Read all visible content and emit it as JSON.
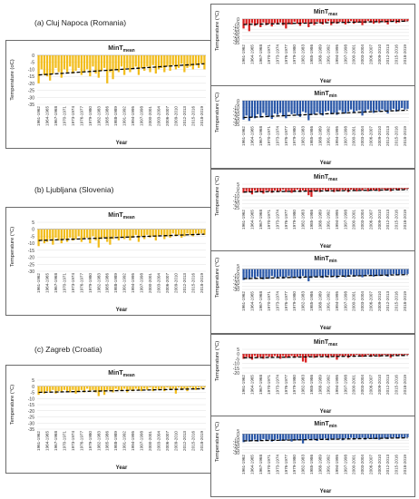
{
  "cities": [
    {
      "label": "(a)  Cluj Napoca (Romania)"
    },
    {
      "label": "(b)  Ljubljana (Slovenia)"
    },
    {
      "label": "(c)  Zagreb (Croatia)"
    }
  ],
  "colors": {
    "mean": "#f2bd1d",
    "max": "#d92020",
    "min": "#2b58a8",
    "trend": "#000000"
  },
  "chart_data": [
    {
      "type": "bar",
      "title": "MinT",
      "title_sub": "mean",
      "xlabel": "Year",
      "ylabel": "Temperature (oC)",
      "ylim": [
        -35,
        0
      ],
      "yticks": [
        0,
        -5,
        -10,
        -15,
        -20,
        -25,
        -30,
        -35
      ],
      "x_ticks": [
        "1961-1962",
        "1964-1965",
        "1967-1968",
        "1970-1971",
        "1973-1974",
        "1976-1977",
        "1979-1980",
        "1982-1983",
        "1985-1986",
        "1988-1989",
        "1991-1992",
        "1994-1995",
        "1997-1998",
        "2000-2001",
        "2003-2004",
        "2006-2007",
        "2009-2010",
        "2012-2013",
        "2015-2016",
        "2018-2019"
      ],
      "values": [
        -20,
        -10,
        -14,
        -15,
        -18,
        -13,
        -9,
        -12,
        -16,
        -10,
        -12,
        -8,
        -13,
        -11,
        -9,
        -14,
        -12,
        -10,
        -15,
        -8,
        -13,
        -16,
        -11,
        -9,
        -20,
        -12,
        -17,
        -10,
        -12,
        -8,
        -14,
        -9,
        -12,
        -10,
        -8,
        -14,
        -9,
        -11,
        -8,
        -12,
        -7,
        -13,
        -10,
        -9,
        -12,
        -8,
        -11,
        -7,
        -10,
        -9,
        -6,
        -12,
        -9,
        -8,
        -10,
        -7,
        -9,
        -6,
        -10
      ],
      "trend": [
        -14,
        -6
      ]
    },
    {
      "type": "bar",
      "title": "MinT",
      "title_sub": "max",
      "xlabel": "Year",
      "ylabel": "Temperature (°C)",
      "ylim": [
        -35,
        0
      ],
      "yticks": [
        0,
        -5,
        -10,
        -15,
        -20,
        -25,
        -30,
        -35
      ],
      "x_ticks": [
        "1961-1962",
        "1964-1965",
        "1967-1968",
        "1970-1971",
        "1973-1974",
        "1976-1977",
        "1979-1980",
        "1982-1983",
        "1985-1986",
        "1988-1989",
        "1991-1992",
        "1994-1995",
        "1997-1998",
        "2000-2001",
        "2003-2004",
        "2006-2007",
        "2009-2010",
        "2012-2013",
        "2015-2016",
        "2018-2019"
      ],
      "values": [
        -14,
        -8,
        -18,
        -6,
        -10,
        -7,
        -12,
        -5,
        -9,
        -7,
        -11,
        -6,
        -8,
        -5,
        -9,
        -14,
        -6,
        -8,
        -4,
        -7,
        -10,
        -6,
        -5,
        -12,
        -7,
        -9,
        -4,
        -6,
        -8,
        -5,
        -3,
        -9,
        -6,
        -7,
        -4,
        -5,
        -8,
        -6,
        -3,
        -7,
        -5,
        -4,
        -9,
        -6,
        -3,
        -5,
        -7,
        -4,
        -6,
        -3,
        -5,
        -8,
        -4,
        -3,
        -6,
        -5,
        -2,
        -4,
        -3
      ],
      "trend": [
        -8,
        -3
      ]
    },
    {
      "type": "bar",
      "title": "MinT",
      "title_sub": "min",
      "xlabel": "Year",
      "ylabel": "Temperature (°C)",
      "ylim": [
        -35,
        0
      ],
      "yticks": [
        0,
        -5,
        -10,
        -15,
        -20,
        -25,
        -30,
        -35
      ],
      "x_ticks": [
        "1961-1962",
        "1964-1965",
        "1967-1968",
        "1970-1971",
        "1973-1974",
        "1976-1977",
        "1979-1980",
        "1982-1983",
        "1985-1986",
        "1988-1989",
        "1991-1992",
        "1994-1995",
        "1997-1998",
        "2000-2001",
        "2003-2004",
        "2006-2007",
        "2009-2010",
        "2012-2013",
        "2015-2016",
        "2018-2019"
      ],
      "values": [
        -28,
        -22,
        -30,
        -24,
        -26,
        -20,
        -25,
        -18,
        -22,
        -24,
        -27,
        -19,
        -21,
        -18,
        -23,
        -26,
        -17,
        -20,
        -19,
        -22,
        -24,
        -16,
        -18,
        -29,
        -21,
        -20,
        -17,
        -19,
        -22,
        -16,
        -15,
        -20,
        -18,
        -21,
        -14,
        -17,
        -19,
        -16,
        -13,
        -18,
        -15,
        -14,
        -22,
        -17,
        -13,
        -15,
        -18,
        -14,
        -16,
        -13,
        -15,
        -19,
        -14,
        -12,
        -16,
        -14,
        -11,
        -13,
        -12
      ],
      "trend": [
        -25,
        -14
      ]
    },
    {
      "type": "bar",
      "title": "MinT",
      "title_sub": "mean",
      "xlabel": "Year",
      "ylabel": "Temperature (°C)",
      "ylim": [
        -30,
        5
      ],
      "yticks": [
        5,
        0,
        -5,
        -10,
        -15,
        -20,
        -25,
        -30
      ],
      "x_ticks": [
        "1961-1962",
        "1964-1965",
        "1967-1968",
        "1970-1971",
        "1973-1974",
        "1976-1977",
        "1979-1980",
        "1982-1983",
        "1985-1986",
        "1988-1989",
        "1991-1992",
        "1994-1995",
        "1997-1998",
        "2000-2001",
        "2003-2004",
        "2006-2007",
        "2009-2010",
        "2012-2013",
        "2015-2016",
        "2018-2019"
      ],
      "values": [
        -12,
        -8,
        -10,
        -9,
        -7,
        -11,
        -6,
        -8,
        -10,
        -7,
        -9,
        -6,
        -8,
        -7,
        -5,
        -9,
        -7,
        -6,
        -10,
        -5,
        -8,
        -13,
        -7,
        -6,
        -9,
        -11,
        -7,
        -5,
        -8,
        -6,
        -7,
        -5,
        -8,
        -6,
        -4,
        -9,
        -5,
        -7,
        -4,
        -6,
        -5,
        -8,
        -5,
        -4,
        -7,
        -5,
        -6,
        -3,
        -5,
        -4,
        -6,
        -5,
        -3,
        -4,
        -5,
        -3,
        -4,
        -3,
        -4
      ],
      "trend": [
        -8,
        -3.5
      ]
    },
    {
      "type": "bar",
      "title": "MinT",
      "title_sub": "max",
      "xlabel": "Year",
      "ylabel": "Temperature (°C)",
      "ylim": [
        -25,
        5
      ],
      "yticks": [
        5,
        0,
        -5,
        -10,
        -15,
        -20,
        -25
      ],
      "x_ticks": [
        "1961-1962",
        "1964-1965",
        "1967-1968",
        "1970-1971",
        "1973-1974",
        "1976-1977",
        "1979-1980",
        "1982-1983",
        "1985-1986",
        "1988-1989",
        "1991-1992",
        "1994-1995",
        "1997-1998",
        "2000-2001",
        "2003-2004",
        "2006-2007",
        "2009-2010",
        "2012-2013",
        "2015-2016",
        "2018-2019"
      ],
      "values": [
        -6,
        -4,
        -5,
        -8,
        -3,
        -5,
        -4,
        -7,
        -3,
        -4,
        -6,
        -3,
        -5,
        -4,
        -2,
        -5,
        -3,
        -6,
        -4,
        -2,
        -5,
        -3,
        -4,
        -9,
        -11,
        -4,
        -3,
        -5,
        -2,
        -3,
        -4,
        -2,
        -5,
        -3,
        -4,
        -2,
        -3,
        -5,
        -2,
        -3,
        -4,
        -2,
        -3,
        -1,
        -4,
        -2,
        -3,
        -2,
        -4,
        -1,
        -3,
        -2,
        -4,
        -1,
        -2,
        -3,
        -1,
        -2,
        -1
      ],
      "trend": [
        -5,
        -2
      ]
    },
    {
      "type": "bar",
      "title": "MinT",
      "title_sub": "min",
      "xlabel": "Year",
      "ylabel": "Temperature (°C)",
      "ylim": [
        -30,
        5
      ],
      "yticks": [
        5,
        0,
        -5,
        -10,
        -15,
        -20,
        -25,
        -30
      ],
      "x_ticks": [
        "1961-1962",
        "1964-1965",
        "1967-1968",
        "1970-1971",
        "1973-1974",
        "1976-1977",
        "1979-1980",
        "1982-1983",
        "1985-1986",
        "1988-1989",
        "1991-1992",
        "1994-1995",
        "1997-1998",
        "2000-2001",
        "2003-2004",
        "2006-2007",
        "2009-2010",
        "2012-2013",
        "2015-2016",
        "2018-2019"
      ],
      "values": [
        -16,
        -13,
        -15,
        -12,
        -14,
        -11,
        -13,
        -15,
        -12,
        -14,
        -10,
        -12,
        -13,
        -11,
        -14,
        -12,
        -10,
        -13,
        -11,
        -12,
        -14,
        -10,
        -12,
        -18,
        -13,
        -11,
        -12,
        -10,
        -13,
        -11,
        -9,
        -12,
        -10,
        -13,
        -9,
        -11,
        -12,
        -10,
        -8,
        -11,
        -10,
        -9,
        -12,
        -10,
        -8,
        -9,
        -11,
        -9,
        -10,
        -8,
        -9,
        -11,
        -8,
        -7,
        -9,
        -8,
        -7,
        -8,
        -7
      ],
      "trend": [
        -14,
        -8
      ]
    },
    {
      "type": "bar",
      "title": "MinT",
      "title_sub": "mean",
      "xlabel": "Year",
      "ylabel": "Temperature (°C)",
      "ylim": [
        -35,
        5
      ],
      "yticks": [
        5,
        0,
        -5,
        -10,
        -15,
        -20,
        -25,
        -30,
        -35
      ],
      "x_ticks": [
        "1961-1962",
        "1964-1965",
        "1967-1968",
        "1970-1971",
        "1973-1974",
        "1976-1977",
        "1979-1980",
        "1982-1983",
        "1985-1986",
        "1988-1989",
        "1991-1992",
        "1994-1995",
        "1997-1998",
        "2000-2001",
        "2003-2004",
        "2006-2007",
        "2009-2010",
        "2012-2013",
        "2015-2016",
        "2018-2019"
      ],
      "values": [
        -7,
        -5,
        -6,
        -4,
        -5,
        -3,
        -6,
        -4,
        -5,
        -3,
        -4,
        -5,
        -3,
        -6,
        -4,
        -3,
        -5,
        -2,
        -4,
        -3,
        -5,
        -8,
        -4,
        -7,
        -3,
        -4,
        -5,
        -2,
        -3,
        -4,
        -2,
        -5,
        -3,
        -4,
        -2,
        -3,
        -4,
        -2,
        -3,
        -1,
        -4,
        -2,
        -3,
        -2,
        -4,
        -1,
        -3,
        -2,
        -6,
        -1,
        -3,
        -2,
        -4,
        -1,
        -2,
        -3,
        -1,
        -2,
        -1
      ],
      "trend": [
        -5,
        -2
      ]
    },
    {
      "type": "bar",
      "title": "MinT",
      "title_sub": "max",
      "xlabel": "Year",
      "ylabel": "Temperature (°C)",
      "ylim": [
        -20,
        5
      ],
      "yticks": [
        5,
        0,
        -5,
        -10,
        -15,
        -20
      ],
      "x_ticks": [
        "1961-1962",
        "1964-1965",
        "1967-1968",
        "1970-1971",
        "1973-1974",
        "1976-1977",
        "1979-1980",
        "1982-1983",
        "1985-1986",
        "1988-1989",
        "1991-1992",
        "1994-1995",
        "1997-1998",
        "2000-2001",
        "2003-2004",
        "2006-2007",
        "2009-2010",
        "2012-2013",
        "2015-2016",
        "2018-2019"
      ],
      "values": [
        -5,
        -3,
        -4,
        -6,
        -2,
        -4,
        -3,
        -5,
        -2,
        -3,
        -4,
        -2,
        -3,
        -5,
        -2,
        -4,
        -3,
        -2,
        -4,
        -3,
        -2,
        -8,
        -9,
        -3,
        -2,
        -4,
        -3,
        -2,
        -3,
        -2,
        -4,
        -2,
        -3,
        -6,
        -2,
        -3,
        -2,
        -4,
        -2,
        -3,
        -1,
        -2,
        -3,
        -2,
        -1,
        -3,
        -2,
        -1,
        -3,
        -2,
        -1,
        -2,
        -4,
        -1,
        -2,
        -1,
        -2,
        -1,
        -1
      ],
      "trend": [
        -4,
        -1.5
      ]
    },
    {
      "type": "bar",
      "title": "MinT",
      "title_sub": "min",
      "xlabel": "Year",
      "ylabel": "Temperature (°C)",
      "ylim": [
        -30,
        5
      ],
      "yticks": [
        5,
        0,
        -5,
        -10,
        -15,
        -20,
        -25,
        -30
      ],
      "x_ticks": [
        "1961-1962",
        "1964-1965",
        "1967-1968",
        "1970-1971",
        "1973-1974",
        "1976-1977",
        "1979-1980",
        "1982-1983",
        "1985-1986",
        "1988-1989",
        "1991-1992",
        "1994-1995",
        "1997-1998",
        "2000-2001",
        "2003-2004",
        "2006-2007",
        "2009-2010",
        "2012-2013",
        "2015-2016",
        "2018-2019"
      ],
      "values": [
        -13,
        -10,
        -12,
        -11,
        -9,
        -12,
        -10,
        -8,
        -11,
        -9,
        -12,
        -10,
        -8,
        -11,
        -9,
        -10,
        -8,
        -12,
        -9,
        -10,
        -8,
        -15,
        -9,
        -8,
        -10,
        -9,
        -11,
        -8,
        -9,
        -7,
        -10,
        -8,
        -9,
        -7,
        -8,
        -10,
        -7,
        -8,
        -6,
        -9,
        -7,
        -8,
        -6,
        -9,
        -7,
        -6,
        -8,
        -7,
        -9,
        -6,
        -7,
        -8,
        -6,
        -5,
        -7,
        -6,
        -5,
        -6,
        -5
      ],
      "trend": [
        -11,
        -6
      ]
    }
  ]
}
